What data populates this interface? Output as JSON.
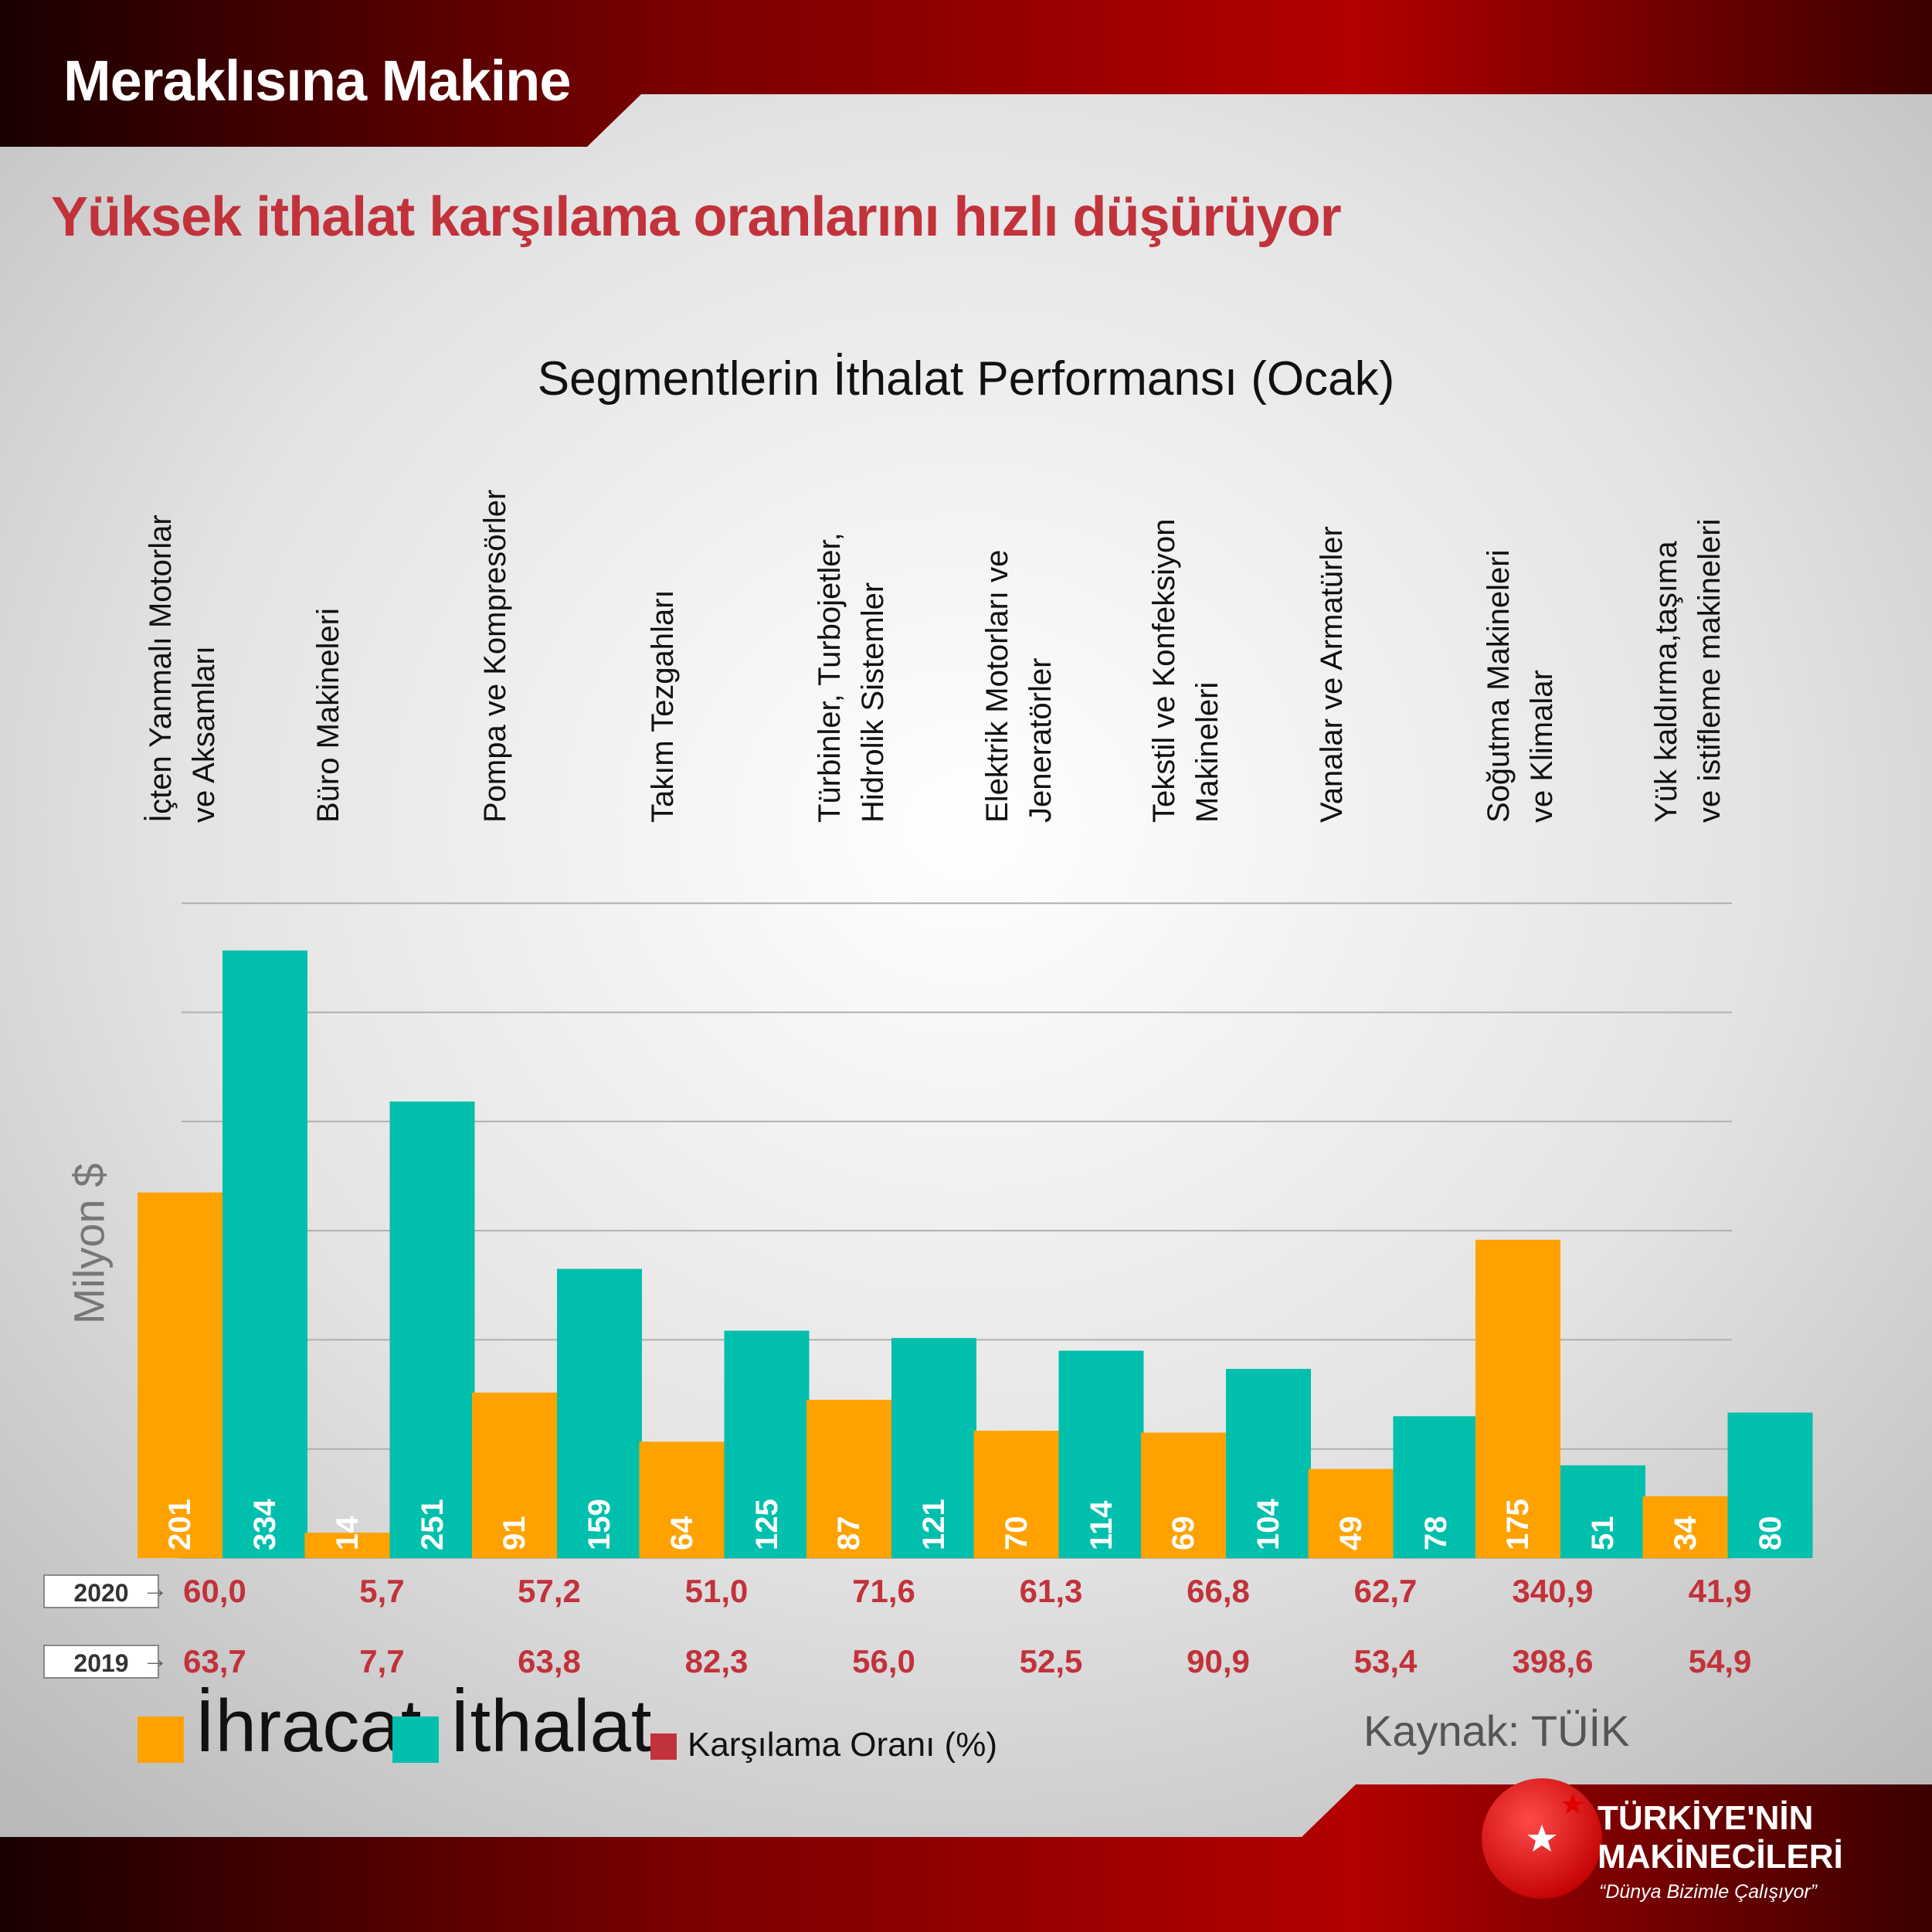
{
  "brand": "Meraklısına Makine",
  "headline": "Yüksek ithalat karşılama oranlarını hızlı düşürüyor",
  "colors": {
    "export": "#ffa200",
    "import": "#00bfad",
    "ratio": "#c2323a",
    "headline": "#c2323a"
  },
  "chart_data": {
    "type": "bar",
    "title": "Segmentlerin İthalat Performansı (Ocak)",
    "ylabel": "Milyon $",
    "ylim": [
      0,
      400
    ],
    "grid": true,
    "categories": [
      [
        "İçten Yanmalı Motorlar",
        "ve Aksamları"
      ],
      [
        "Büro Makineleri"
      ],
      [
        "Pompa ve Kompresörler"
      ],
      [
        "Takım Tezgahları"
      ],
      [
        "Türbinler, Turbojetler,",
        "Hidrolik Sistemler"
      ],
      [
        "Elektrik Motorları ve",
        "Jeneratörler"
      ],
      [
        "Tekstil ve Konfeksiyon",
        "Makineleri"
      ],
      [
        "Vanalar ve Armatürler"
      ],
      [
        "Soğutma Makineleri",
        "ve Klimalar"
      ],
      [
        "Yük kaldırma,taşıma",
        "ve istifleme makineleri"
      ]
    ],
    "series": [
      {
        "name": "İhracat",
        "values": [
          201,
          14,
          91,
          64,
          87,
          70,
          69,
          49,
          175,
          34
        ]
      },
      {
        "name": "İthalat",
        "values": [
          334,
          251,
          159,
          125,
          121,
          114,
          104,
          78,
          51,
          80
        ]
      }
    ],
    "coverage_rows": [
      {
        "year": "2020",
        "values": [
          "60,0",
          "5,7",
          "57,2",
          "51,0",
          "71,6",
          "61,3",
          "66,8",
          "62,7",
          "340,9",
          "41,9"
        ]
      },
      {
        "year": "2019",
        "values": [
          "63,7",
          "7,7",
          "63,8",
          "82,3",
          "56,0",
          "52,5",
          "90,9",
          "53,4",
          "398,6",
          "54,9"
        ]
      }
    ],
    "legend": {
      "export": "İhracat",
      "import": "İthalat",
      "ratio": "Karşılama Oranı (%)"
    },
    "source": "Kaynak: TÜİK"
  },
  "logo": {
    "line1": "TÜRKİYE'NİN",
    "line2": "MAKİNECİLERİ",
    "slogan": "“Dünya Bizimle Çalışıyor”",
    "icon": "star-crescent-icon"
  }
}
